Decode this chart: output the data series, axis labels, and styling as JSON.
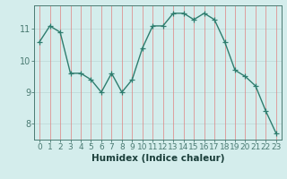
{
  "x": [
    0,
    1,
    2,
    3,
    4,
    5,
    6,
    7,
    8,
    9,
    10,
    11,
    12,
    13,
    14,
    15,
    16,
    17,
    18,
    19,
    20,
    21,
    22,
    23
  ],
  "y": [
    10.6,
    11.1,
    10.9,
    9.6,
    9.6,
    9.4,
    9.0,
    9.6,
    9.0,
    9.4,
    10.4,
    11.1,
    11.1,
    11.5,
    11.5,
    11.3,
    11.5,
    11.3,
    10.6,
    9.7,
    9.5,
    9.2,
    8.4,
    7.7
  ],
  "line_color": "#2e7d6e",
  "marker": "+",
  "marker_size": 4,
  "marker_color": "#2e7d6e",
  "bg_color": "#d4edec",
  "grid_color_h": "#c0dbd9",
  "grid_color_v": "#e08080",
  "axis_color": "#4a7a72",
  "tick_label_color": "#2e5e58",
  "xlabel": "Humidex (Indice chaleur)",
  "xlabel_color": "#1a3e3a",
  "ylim": [
    7.5,
    11.75
  ],
  "yticks": [
    8,
    9,
    10,
    11
  ],
  "xticks": [
    0,
    1,
    2,
    3,
    4,
    5,
    6,
    7,
    8,
    9,
    10,
    11,
    12,
    13,
    14,
    15,
    16,
    17,
    18,
    19,
    20,
    21,
    22,
    23
  ],
  "line_width": 1.0,
  "font_size": 6.5,
  "xlabel_fontsize": 7.5
}
